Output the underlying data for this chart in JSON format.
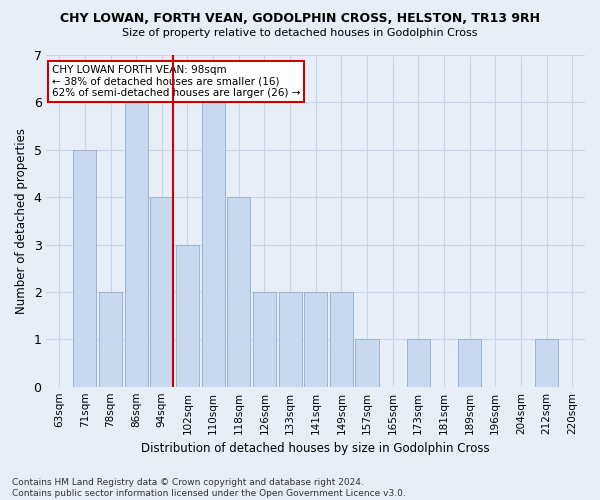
{
  "title": "CHY LOWAN, FORTH VEAN, GODOLPHIN CROSS, HELSTON, TR13 9RH",
  "subtitle": "Size of property relative to detached houses in Godolphin Cross",
  "xlabel": "Distribution of detached houses by size in Godolphin Cross",
  "ylabel": "Number of detached properties",
  "categories": [
    "63sqm",
    "71sqm",
    "78sqm",
    "86sqm",
    "94sqm",
    "102sqm",
    "110sqm",
    "118sqm",
    "126sqm",
    "133sqm",
    "141sqm",
    "149sqm",
    "157sqm",
    "165sqm",
    "173sqm",
    "181sqm",
    "189sqm",
    "196sqm",
    "204sqm",
    "212sqm",
    "220sqm"
  ],
  "values": [
    0,
    5,
    2,
    6,
    4,
    3,
    6,
    4,
    2,
    2,
    2,
    2,
    1,
    0,
    1,
    0,
    1,
    0,
    0,
    1,
    0
  ],
  "bar_color": "#c8d8ee",
  "bar_edge_color": "#9ab4d4",
  "highlight_index": 4,
  "highlight_line_color": "#cc0000",
  "annotation_text": "CHY LOWAN FORTH VEAN: 98sqm\n← 38% of detached houses are smaller (16)\n62% of semi-detached houses are larger (26) →",
  "annotation_box_color": "#ffffff",
  "annotation_box_edge": "#cc0000",
  "grid_color": "#c8d4e8",
  "background_color": "#e8eef8",
  "ylim": [
    0,
    7
  ],
  "footer": "Contains HM Land Registry data © Crown copyright and database right 2024.\nContains public sector information licensed under the Open Government Licence v3.0."
}
